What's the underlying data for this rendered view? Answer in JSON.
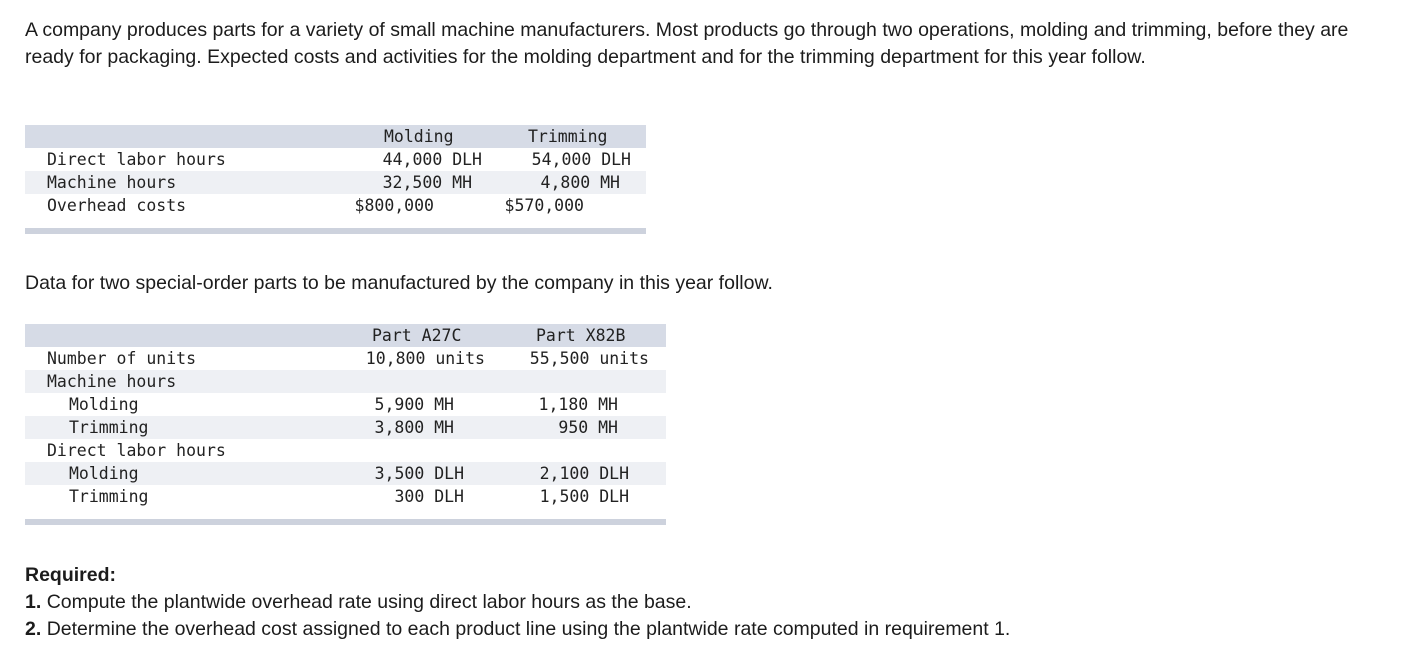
{
  "intro": "A company produces parts for a variety of small machine manufacturers. Most products go through two operations, molding and trimming, before they are ready for packaging. Expected costs and activities for the molding department and for the trimming department for this year follow.",
  "table1": {
    "headers": [
      "Molding",
      "Trimming"
    ],
    "rows": [
      {
        "label": "Direct labor hours",
        "molding": "44,000 DLH",
        "trimming": "54,000 DLH"
      },
      {
        "label": "Machine hours",
        "molding": "32,500 MH",
        "trimming": "4,800 MH"
      },
      {
        "label": "Overhead costs",
        "molding": "$800,000",
        "trimming": "$570,000"
      }
    ]
  },
  "middle": "Data for two special-order parts to be manufactured by the company in this year follow.",
  "table2": {
    "headers": [
      "Part A27C",
      "Part X82B"
    ],
    "rows": [
      {
        "label": "Number of units",
        "a": "10,800 units",
        "x": "55,500 units"
      },
      {
        "label": "Machine hours",
        "a": "",
        "x": ""
      },
      {
        "label": "Molding",
        "a": "5,900 MH",
        "x": "1,180 MH"
      },
      {
        "label": "Trimming",
        "a": "3,800 MH",
        "x": "950 MH"
      },
      {
        "label": "Direct labor hours",
        "a": "",
        "x": ""
      },
      {
        "label": "Molding",
        "a": "3,500 DLH",
        "x": "2,100 DLH"
      },
      {
        "label": "Trimming",
        "a": "300 DLH",
        "x": "1,500 DLH"
      }
    ]
  },
  "required": {
    "heading": "Required:",
    "items": [
      {
        "num": "1.",
        "text": "Compute the plantwide overhead rate using direct labor hours as the base."
      },
      {
        "num": "2.",
        "text": "Determine the overhead cost assigned to each product line using the plantwide rate computed in requirement 1."
      }
    ]
  }
}
